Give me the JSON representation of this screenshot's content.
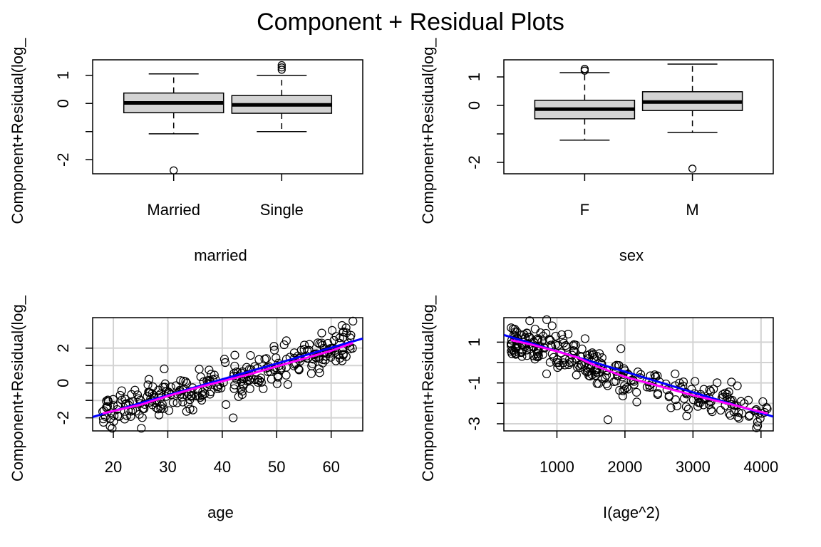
{
  "title": "Component + Residual Plots",
  "colors": {
    "box_fill": "#d3d3d3",
    "grid": "#d3d3d3",
    "linear_fit": "#0000ff",
    "smooth_fit": "#ff00ff",
    "points": "#000000"
  },
  "chart_data": [
    {
      "type": "box",
      "xlabel": "married",
      "ylabel": "Component+Residual(log_",
      "categories": [
        "Married",
        "Single"
      ],
      "yticks": [
        -2,
        0,
        1
      ],
      "ytick_labels": [
        "-2",
        "0",
        "1"
      ],
      "ylim": [
        -2.5,
        1.55
      ],
      "grid": false,
      "boxes": [
        {
          "label": "Married",
          "whisker_low": -1.08,
          "q1": -0.33,
          "median": 0.02,
          "q3": 0.37,
          "whisker_high": 1.05,
          "outliers": [
            -2.38
          ]
        },
        {
          "label": "Single",
          "whisker_low": -1.0,
          "q1": -0.35,
          "median": -0.05,
          "q3": 0.28,
          "whisker_high": 1.0,
          "outliers": [
            1.2,
            1.28,
            1.36
          ]
        }
      ]
    },
    {
      "type": "box",
      "xlabel": "sex",
      "ylabel": "Component+Residual(log_",
      "categories": [
        "F",
        "M"
      ],
      "yticks": [
        -2,
        0,
        1
      ],
      "ytick_labels": [
        "-2",
        "0",
        "1"
      ],
      "ylim": [
        -2.4,
        1.6
      ],
      "grid": false,
      "boxes": [
        {
          "label": "F",
          "whisker_low": -1.22,
          "q1": -0.47,
          "median": -0.13,
          "q3": 0.18,
          "whisker_high": 1.15,
          "outliers": [
            1.22,
            1.28
          ]
        },
        {
          "label": "M",
          "whisker_low": -0.95,
          "q1": -0.18,
          "median": 0.12,
          "q3": 0.48,
          "whisker_high": 1.45,
          "outliers": [
            -2.22
          ]
        }
      ]
    },
    {
      "type": "scatter",
      "xlabel": "age",
      "ylabel": "Component+Residual(log_",
      "xticks": [
        20,
        30,
        40,
        50,
        60
      ],
      "xtick_labels": [
        "20",
        "30",
        "40",
        "50",
        "60"
      ],
      "yticks": [
        -2,
        0,
        2
      ],
      "ytick_labels": [
        "-2",
        "0",
        "2"
      ],
      "xlim": [
        16.2,
        65.8
      ],
      "ylim": [
        -2.75,
        3.75
      ],
      "grid": true,
      "x_range": [
        18,
        64
      ],
      "y_sd": 0.55,
      "n_points": 300,
      "outliers": [
        {
          "x": 42,
          "y": -2.0
        },
        {
          "x": 64,
          "y": 3.55
        },
        {
          "x": 62,
          "y": 3.3
        }
      ],
      "linear_fit": {
        "x": [
          16.2,
          65.8
        ],
        "y": [
          -1.95,
          2.55
        ]
      },
      "smooth_fit": {
        "x": [
          18,
          25,
          30,
          35,
          40,
          45,
          50,
          55,
          60,
          64
        ],
        "y": [
          -1.75,
          -1.25,
          -0.75,
          -0.3,
          0.1,
          0.5,
          0.95,
          1.4,
          1.85,
          2.3
        ]
      }
    },
    {
      "type": "scatter",
      "xlabel": "I(age^2)",
      "ylabel": "Component+Residual(log_",
      "xticks": [
        1000,
        2000,
        3000,
        4000
      ],
      "xtick_labels": [
        "1000",
        "2000",
        "3000",
        "4000"
      ],
      "yticks": [
        -3,
        -1,
        1
      ],
      "ytick_labels": [
        "-3",
        "-1",
        "1"
      ],
      "xlim": [
        220,
        4180
      ],
      "ylim": [
        -3.35,
        2.2
      ],
      "grid": true,
      "x_range": [
        324,
        4096
      ],
      "y_sd": 0.45,
      "n_points": 300,
      "outliers": [
        {
          "x": 1750,
          "y": -2.8
        },
        {
          "x": 850,
          "y": 2.1
        },
        {
          "x": 600,
          "y": 2.05
        }
      ],
      "linear_fit": {
        "x": [
          220,
          4180
        ],
        "y": [
          1.35,
          -2.65
        ]
      },
      "smooth_fit": {
        "x": [
          324,
          600,
          1000,
          1300,
          1600,
          2000,
          2500,
          3000,
          3500,
          4096
        ],
        "y": [
          1.1,
          0.9,
          0.55,
          0.25,
          -0.2,
          -0.7,
          -1.15,
          -1.6,
          -2.0,
          -2.5
        ]
      }
    }
  ]
}
